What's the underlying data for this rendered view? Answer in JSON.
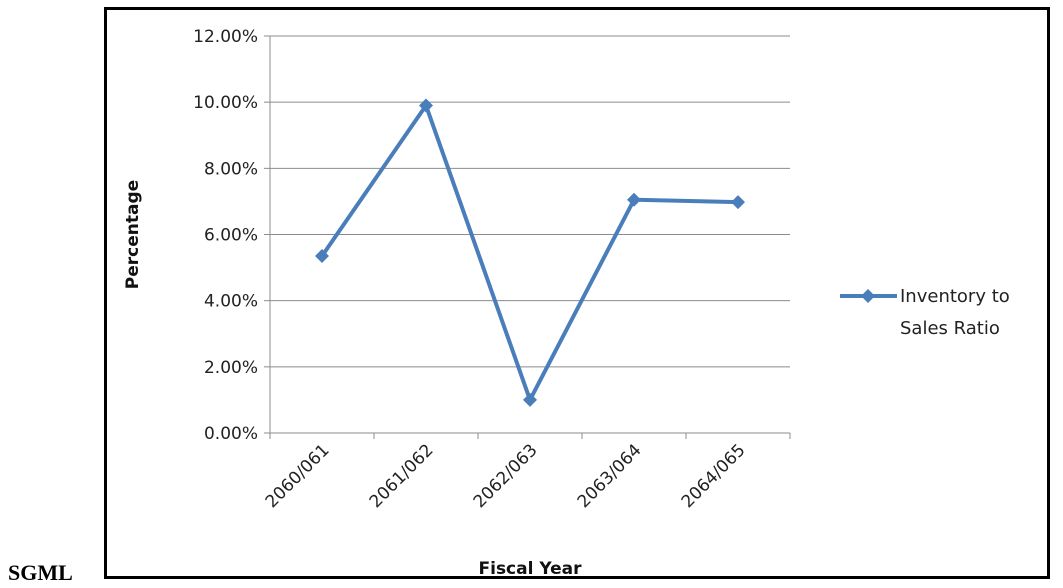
{
  "side_label": "SGML",
  "chart_data": {
    "type": "line",
    "categories": [
      "2060/061",
      "2061/062",
      "2062/063",
      "2063/064",
      "2064/065"
    ],
    "series": [
      {
        "name": "Inventory to Sales Ratio",
        "values": [
          5.35,
          9.9,
          1.0,
          7.05,
          6.98
        ],
        "color": "#4a7ebb"
      }
    ],
    "xlabel": "Fiscal Year",
    "ylabel": "Percentage",
    "ylim": [
      0,
      12
    ],
    "yticks": [
      "0.00%",
      "2.00%",
      "4.00%",
      "6.00%",
      "8.00%",
      "10.00%",
      "12.00%"
    ],
    "grid": true,
    "legend_position": "right",
    "legend_lines": [
      "Inventory to",
      "Sales Ratio"
    ]
  }
}
